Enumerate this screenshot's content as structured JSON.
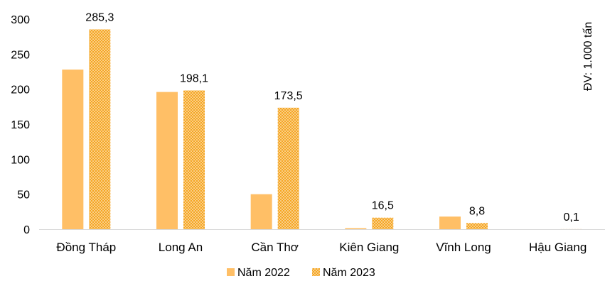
{
  "chart_data": {
    "type": "bar",
    "categories": [
      "Đồng Tháp",
      "Long An",
      "Cần Thơ",
      "Kiên Giang",
      "Vĩnh Long",
      "Hậu Giang"
    ],
    "series": [
      {
        "name": "Năm 2022",
        "values": [
          228,
          196,
          50,
          1.5,
          18,
          0
        ],
        "color": "#ffbf66",
        "pattern": "solid",
        "labels": [
          "",
          "",
          "",
          "",
          "",
          ""
        ]
      },
      {
        "name": "Năm 2023",
        "values": [
          285.3,
          198.1,
          173.5,
          16.5,
          8.8,
          0.1
        ],
        "color": "#f5a623",
        "pattern": "dotted",
        "labels": [
          "285,3",
          "198,1",
          "173,5",
          "16,5",
          "8,8",
          "0,1"
        ]
      }
    ],
    "ylim": [
      0,
      300
    ],
    "yticks": [
      "0",
      "50",
      "100",
      "150",
      "200",
      "250",
      "300"
    ],
    "unit_label": "ĐV: 1.000 tấn",
    "legend_position": "bottom-center",
    "grid": false
  }
}
